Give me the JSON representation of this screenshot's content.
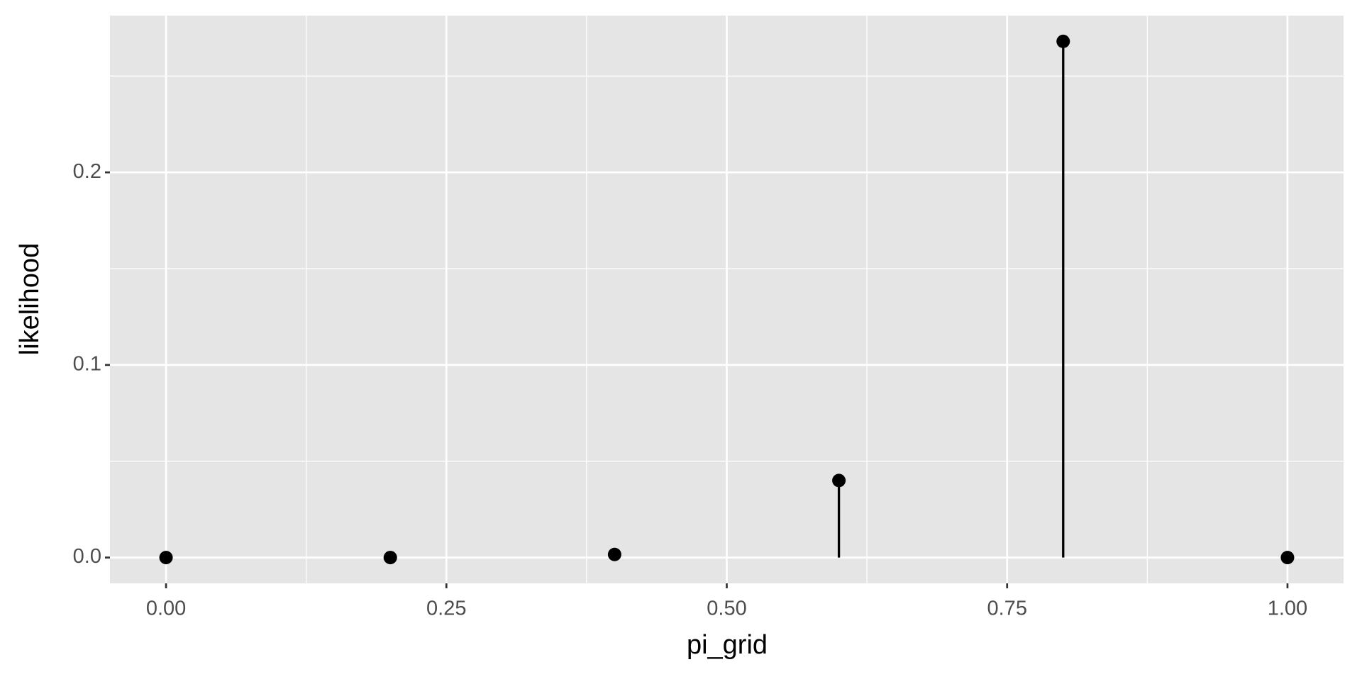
{
  "chart_data": {
    "type": "lollipop",
    "x": [
      0,
      0.2,
      0.4,
      0.6,
      0.8,
      1.0
    ],
    "values": [
      0,
      4.1e-06,
      0.0016,
      0.04,
      0.268,
      0
    ],
    "color": "#000000",
    "x_label": "pi_grid",
    "y_label": "likelihood",
    "xlim": [
      -0.05,
      1.05
    ],
    "ylim": [
      -0.0134,
      0.2814
    ],
    "xticks": [
      {
        "value": 0,
        "label": "0.00"
      },
      {
        "value": 0.25,
        "label": "0.25"
      },
      {
        "value": 0.5,
        "label": "0.50"
      },
      {
        "value": 0.75,
        "label": "0.75"
      },
      {
        "value": 1,
        "label": "1.00"
      }
    ],
    "yticks": [
      {
        "value": 0,
        "label": "0.0"
      },
      {
        "value": 0.1,
        "label": "0.1"
      },
      {
        "value": 0.2,
        "label": "0.2"
      }
    ],
    "x_minor_breaks": [
      0.125,
      0.375,
      0.625,
      0.875
    ],
    "y_minor_breaks": [
      0.05,
      0.15,
      0.25
    ],
    "grid": true
  }
}
